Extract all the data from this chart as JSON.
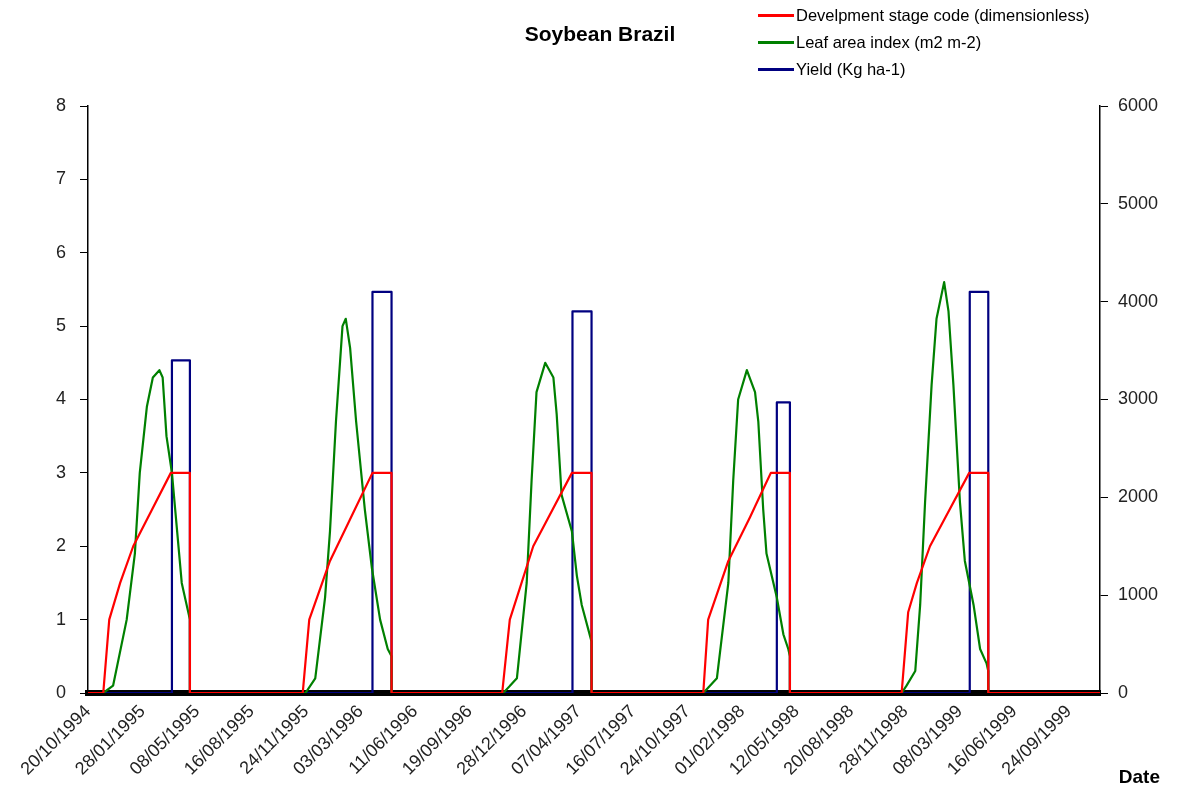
{
  "chart_data": {
    "type": "line",
    "title": "Soybean Brazil",
    "xlabel": "Date",
    "legend": "top right",
    "xlim": [
      "1994-10-20",
      "1999-11-20"
    ],
    "xticks": [
      {
        "value": "1994-10-20",
        "label": "20/10/1994"
      },
      {
        "value": "1995-01-28",
        "label": "28/01/1995"
      },
      {
        "value": "1995-05-08",
        "label": "08/05/1995"
      },
      {
        "value": "1995-08-16",
        "label": "16/08/1995"
      },
      {
        "value": "1995-11-24",
        "label": "24/11/1995"
      },
      {
        "value": "1996-03-03",
        "label": "03/03/1996"
      },
      {
        "value": "1996-06-11",
        "label": "11/06/1996"
      },
      {
        "value": "1996-09-19",
        "label": "19/09/1996"
      },
      {
        "value": "1996-12-28",
        "label": "28/12/1996"
      },
      {
        "value": "1997-04-07",
        "label": "07/04/1997"
      },
      {
        "value": "1997-07-16",
        "label": "16/07/1997"
      },
      {
        "value": "1997-10-24",
        "label": "24/10/1997"
      },
      {
        "value": "1998-02-01",
        "label": "01/02/1998"
      },
      {
        "value": "1998-05-12",
        "label": "12/05/1998"
      },
      {
        "value": "1998-08-20",
        "label": "20/08/1998"
      },
      {
        "value": "1998-11-28",
        "label": "28/11/1998"
      },
      {
        "value": "1999-03-08",
        "label": "08/03/1999"
      },
      {
        "value": "1999-06-16",
        "label": "16/06/1999"
      },
      {
        "value": "1999-09-24",
        "label": "24/09/1999"
      }
    ],
    "ylim": [
      0,
      8
    ],
    "yticks": [
      0,
      1,
      2,
      3,
      4,
      5,
      6,
      7,
      8
    ],
    "y2lim": [
      0,
      6000
    ],
    "y2ticks": [
      0,
      1000,
      2000,
      3000,
      4000,
      5000,
      6000
    ],
    "series": [
      {
        "name": "Develpment stage code (dimensionless)",
        "color": "#ff0000",
        "x": [
          "1994-10-20",
          "1994-11-17",
          "1994-11-28",
          "1994-12-18",
          "1995-01-11",
          "1995-03-21",
          "1995-04-25",
          "1995-04-25",
          "1995-11-18",
          "1995-11-30",
          "1996-01-07",
          "1996-03-25",
          "1996-04-29",
          "1996-04-29",
          "1996-11-18",
          "1996-12-02",
          "1997-01-14",
          "1997-03-26",
          "1997-05-01",
          "1997-05-01",
          "1997-11-22",
          "1997-12-01",
          "1998-01-07",
          "1998-02-16",
          "1998-03-26",
          "1998-04-30",
          "1998-04-30",
          "1998-11-21",
          "1998-12-03",
          "1998-12-19",
          "1999-01-12",
          "1999-03-25",
          "1999-04-29",
          "1999-04-29",
          "1999-11-20"
        ],
        "values": [
          0,
          0,
          1,
          1.5,
          2,
          3,
          3,
          0,
          0,
          1,
          1.8,
          3,
          3,
          0,
          0,
          1,
          2,
          3,
          3,
          0,
          0,
          1,
          1.8,
          2.4,
          3,
          3,
          0,
          0,
          1.1,
          1.5,
          2,
          3,
          3,
          0,
          0
        ]
      },
      {
        "name": "Leaf area index (m2 m-2)",
        "color": "#008000",
        "x": [
          "1994-10-20",
          "1994-11-17",
          "1994-12-05",
          "1994-12-30",
          "1995-01-14",
          "1995-01-23",
          "1995-02-05",
          "1995-02-16",
          "1995-02-28",
          "1995-03-06",
          "1995-03-13",
          "1995-03-23",
          "1995-04-10",
          "1995-04-25",
          "1995-04-25",
          "1995-11-23",
          "1995-12-11",
          "1995-12-29",
          "1996-01-07",
          "1996-01-18",
          "1996-01-30",
          "1996-02-05",
          "1996-02-13",
          "1996-02-24",
          "1996-03-11",
          "1996-03-24",
          "1996-04-08",
          "1996-04-22",
          "1996-04-29",
          "1996-04-29",
          "1996-11-20",
          "1996-12-15",
          "1997-01-02",
          "1997-01-11",
          "1997-01-20",
          "1997-02-05",
          "1997-02-20",
          "1997-02-26",
          "1997-03-07",
          "1997-03-26",
          "1997-04-04",
          "1997-04-13",
          "1997-05-01",
          "1997-05-01",
          "1997-11-22",
          "1997-12-17",
          "1998-01-07",
          "1998-01-16",
          "1998-01-25",
          "1998-02-10",
          "1998-02-25",
          "1998-03-03",
          "1998-03-12",
          "1998-03-18",
          "1998-04-06",
          "1998-04-18",
          "1998-04-27",
          "1998-04-30",
          "1998-04-30",
          "1998-11-21",
          "1998-11-30",
          "1998-12-16",
          "1998-12-25",
          "1999-01-03",
          "1999-01-15",
          "1999-01-24",
          "1999-02-07",
          "1999-02-15",
          "1999-02-24",
          "1999-03-08",
          "1999-03-17",
          "1999-04-02",
          "1999-04-14",
          "1999-04-26",
          "1999-04-29",
          "1999-04-29",
          "1999-11-20"
        ],
        "values": [
          0,
          0,
          0.1,
          1,
          1.9,
          3,
          3.9,
          4.3,
          4.4,
          4.3,
          3.5,
          3,
          1.5,
          1,
          0,
          0,
          0.2,
          1.3,
          2.2,
          3.7,
          5,
          5.1,
          4.7,
          3.7,
          2.5,
          1.7,
          1,
          0.6,
          0.5,
          0,
          0,
          0.2,
          1.5,
          2.9,
          4.1,
          4.5,
          4.3,
          3.8,
          2.7,
          2.2,
          1.6,
          1.2,
          0.7,
          0,
          0,
          0.2,
          1.5,
          2.9,
          4,
          4.4,
          4.1,
          3.7,
          2.5,
          1.9,
          1.3,
          0.8,
          0.6,
          0.5,
          0,
          0,
          0.1,
          0.3,
          1.2,
          2.6,
          4.2,
          5.1,
          5.6,
          5.2,
          4.2,
          2.6,
          1.8,
          1.2,
          0.6,
          0.4,
          0.3,
          0,
          0
        ]
      },
      {
        "name": "Yield (Kg ha-1)",
        "color": "#000080",
        "axis": "y2",
        "x": [
          "1994-10-20",
          "1995-03-23",
          "1995-03-23",
          "1995-04-25",
          "1995-04-25",
          "1996-03-25",
          "1996-03-25",
          "1996-04-29",
          "1996-04-29",
          "1997-03-27",
          "1997-03-27",
          "1997-05-01",
          "1997-05-01",
          "1998-04-06",
          "1998-04-06",
          "1998-04-30",
          "1998-04-30",
          "1999-03-26",
          "1999-03-26",
          "1999-04-29",
          "1999-04-29",
          "1999-11-20"
        ],
        "values": [
          0,
          0,
          3400,
          3400,
          0,
          0,
          4100,
          4100,
          0,
          0,
          3900,
          3900,
          0,
          0,
          2970,
          2970,
          0,
          0,
          4100,
          4100,
          0,
          0
        ]
      }
    ]
  }
}
